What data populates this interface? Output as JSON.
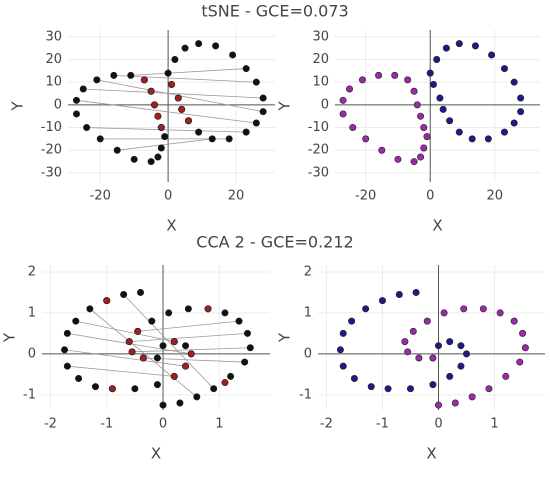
{
  "chart_data": [
    {
      "type": "scatter",
      "title": "tSNE - GCE=0.073",
      "xlabel": "X",
      "ylabel": "Y",
      "xlim": [
        -29.5,
        31.5
      ],
      "ylim": [
        -34,
        33
      ],
      "xticks": [
        -20,
        0,
        20
      ],
      "yticks": [
        -30,
        -20,
        -10,
        0,
        10,
        20,
        30
      ],
      "grid": true,
      "segments": {
        "color": "#9a9a9a",
        "values": [
          [
            -27,
            2,
            26,
            -8
          ],
          [
            -25,
            7,
            28,
            3
          ],
          [
            -24,
            -10,
            23,
            -12
          ],
          [
            -21,
            11,
            28,
            -3
          ],
          [
            -16,
            13,
            26,
            10
          ],
          [
            -20,
            -15,
            18,
            -15
          ],
          [
            -11,
            13,
            23,
            16
          ],
          [
            -15,
            -20,
            13,
            -15
          ]
        ]
      },
      "series": [
        {
          "color": "#111111",
          "x": [
            -5,
            -10,
            -15,
            -20,
            -24,
            -27,
            -27,
            -25,
            -21,
            -16,
            -11,
            -7,
            -5,
            -4,
            -3,
            -2,
            -1,
            -2,
            -3,
            0,
            2,
            5,
            9,
            14,
            19,
            23,
            26,
            28,
            28,
            26,
            23,
            18,
            13,
            9,
            6,
            4,
            3,
            1
          ],
          "values": [
            -25,
            -24,
            -20,
            -15,
            -10,
            -4,
            2,
            7,
            11,
            13,
            13,
            11,
            6,
            0,
            -5,
            -10,
            -14,
            -19,
            -23,
            14,
            20,
            25,
            27,
            26,
            22,
            16,
            10,
            3,
            -3,
            -8,
            -12,
            -15,
            -15,
            -12,
            -7,
            -2,
            3,
            9
          ]
        },
        {
          "color": "#a02020",
          "x": [
            -7,
            -5,
            -4,
            -3,
            -2,
            6,
            4,
            3,
            1
          ],
          "values": [
            11,
            6,
            0,
            -5,
            -10,
            -7,
            -2,
            3,
            9
          ]
        }
      ]
    },
    {
      "type": "scatter",
      "xlabel": "X",
      "ylabel": "Y",
      "xlim": [
        -29.5,
        34
      ],
      "ylim": [
        -34,
        33
      ],
      "xticks": [
        -20,
        0,
        20
      ],
      "yticks": [
        -30,
        -20,
        -10,
        0,
        10,
        20,
        30
      ],
      "grid": true,
      "series": [
        {
          "color": "#9a2aa8",
          "x": [
            -5,
            -10,
            -15,
            -20,
            -24,
            -27,
            -27,
            -25,
            -21,
            -16,
            -11,
            -7,
            -5,
            -4,
            -3,
            -2,
            -1,
            -2,
            -3
          ],
          "values": [
            -25,
            -24,
            -20,
            -15,
            -10,
            -4,
            2,
            7,
            11,
            13,
            13,
            11,
            6,
            0,
            -5,
            -10,
            -14,
            -19,
            -23
          ]
        },
        {
          "color": "#1c1c86",
          "x": [
            0,
            2,
            5,
            9,
            14,
            19,
            23,
            26,
            28,
            28,
            26,
            23,
            18,
            13,
            9,
            6,
            4,
            3,
            1
          ],
          "values": [
            14,
            20,
            25,
            27,
            26,
            22,
            16,
            10,
            3,
            -3,
            -8,
            -12,
            -15,
            -15,
            -12,
            -7,
            -2,
            3,
            9
          ]
        }
      ]
    },
    {
      "type": "scatter",
      "title": "CCA 2 - GCE=0.212",
      "xlabel": "X",
      "ylabel": "Y",
      "xlim": [
        -2.15,
        1.9
      ],
      "ylim": [
        -1.37,
        2.17
      ],
      "xticks": [
        -2,
        -1,
        0,
        1
      ],
      "yticks": [
        -1,
        0,
        1,
        2
      ],
      "grid": true,
      "segments": {
        "color": "#9a9a9a",
        "values": [
          [
            -1.7,
            0.5,
            0.5,
            0.0
          ],
          [
            -1.75,
            0.1,
            0.4,
            -0.3
          ],
          [
            -1.7,
            -0.3,
            0.2,
            -0.55
          ],
          [
            -1.55,
            0.8,
            0.2,
            0.3
          ],
          [
            1.55,
            0.15,
            -0.55,
            0.05
          ],
          [
            1.5,
            0.5,
            -0.6,
            0.3
          ],
          [
            1.45,
            -0.2,
            -0.35,
            -0.1
          ],
          [
            1.35,
            0.8,
            -0.45,
            0.55
          ],
          [
            -1.3,
            1.1,
            0.6,
            -1.05
          ],
          [
            -0.7,
            1.45,
            0.9,
            -0.85
          ]
        ]
      },
      "series": [
        {
          "color": "#111111",
          "x": [
            -0.4,
            -0.7,
            -1.0,
            -1.3,
            -1.55,
            -1.7,
            -1.75,
            -1.7,
            -1.5,
            -1.2,
            -0.9,
            -0.5,
            -0.1,
            0.2,
            0.4,
            0.5,
            0.4,
            0.2,
            0.0,
            0.0,
            0.3,
            0.6,
            0.9,
            1.2,
            1.45,
            1.55,
            1.5,
            1.35,
            1.1,
            0.8,
            0.45,
            0.1,
            -0.2,
            -0.45,
            -0.6,
            -0.55,
            -0.35,
            -0.1
          ],
          "values": [
            1.5,
            1.45,
            1.3,
            1.1,
            0.8,
            0.5,
            0.1,
            -0.3,
            -0.6,
            -0.8,
            -0.85,
            -0.85,
            -0.75,
            -0.55,
            -0.3,
            0.0,
            0.2,
            0.3,
            0.2,
            -1.25,
            -1.2,
            -1.05,
            -0.85,
            -0.55,
            -0.2,
            0.15,
            0.5,
            0.8,
            1.0,
            1.1,
            1.1,
            1.0,
            0.8,
            0.55,
            0.3,
            0.05,
            -0.1,
            -0.1
          ]
        },
        {
          "color": "#a02020",
          "x": [
            0.2,
            0.4,
            0.5,
            0.2,
            -0.45,
            -0.6,
            -0.55,
            -0.35,
            -0.9,
            -1.0,
            0.8,
            1.1
          ],
          "values": [
            -0.55,
            -0.3,
            0.0,
            0.3,
            0.55,
            0.3,
            0.05,
            -0.1,
            -0.85,
            1.3,
            1.1,
            -0.7
          ]
        }
      ]
    },
    {
      "type": "scatter",
      "xlabel": "X",
      "ylabel": "Y",
      "xlim": [
        -2.15,
        1.9
      ],
      "ylim": [
        -1.37,
        2.17
      ],
      "xticks": [
        -2,
        -1,
        0,
        1
      ],
      "yticks": [
        -1,
        0,
        1,
        2
      ],
      "grid": true,
      "series": [
        {
          "color": "#1c1c86",
          "x": [
            -0.4,
            -0.7,
            -1.0,
            -1.3,
            -1.55,
            -1.7,
            -1.75,
            -1.7,
            -1.5,
            -1.2,
            -0.9,
            -0.5,
            -0.1,
            0.2,
            0.4,
            0.5,
            0.4,
            0.2,
            0.0
          ],
          "values": [
            1.5,
            1.45,
            1.3,
            1.1,
            0.8,
            0.5,
            0.1,
            -0.3,
            -0.6,
            -0.8,
            -0.85,
            -0.85,
            -0.75,
            -0.55,
            -0.3,
            0.0,
            0.2,
            0.3,
            0.2
          ]
        },
        {
          "color": "#9a2aa8",
          "x": [
            0.0,
            0.3,
            0.6,
            0.9,
            1.2,
            1.45,
            1.55,
            1.5,
            1.35,
            1.1,
            0.8,
            0.45,
            0.1,
            -0.2,
            -0.45,
            -0.6,
            -0.55,
            -0.35,
            -0.1
          ],
          "values": [
            -1.25,
            -1.2,
            -1.05,
            -0.85,
            -0.55,
            -0.2,
            0.15,
            0.5,
            0.8,
            1.0,
            1.1,
            1.1,
            1.0,
            0.8,
            0.55,
            0.3,
            0.05,
            -0.1,
            -0.1
          ]
        }
      ]
    }
  ]
}
